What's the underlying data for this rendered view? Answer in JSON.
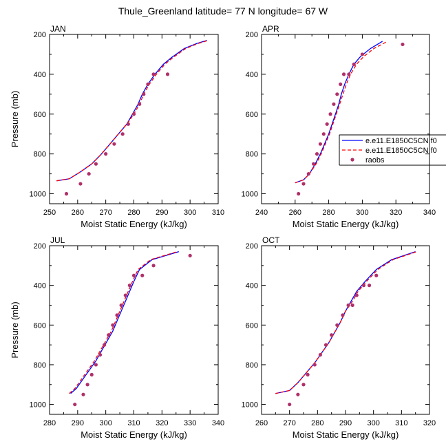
{
  "title": "Thule_Greenland  latitude= 77 N longitude= 67 W",
  "colors": {
    "model1": "#0000ff",
    "model2": "#ff0000",
    "raobs": "#b0306a",
    "axis": "#000000"
  },
  "legend": {
    "panel": "APR",
    "placement": "right",
    "entries": [
      {
        "label": "e.e11.E1850C5CN.f0",
        "style": "solid",
        "color": "#0000ff"
      },
      {
        "label": "e.e11.E1850C5CN.f0",
        "style": "dashed",
        "color": "#ff0000"
      },
      {
        "label": "raobs",
        "style": "marker",
        "color": "#b0306a"
      }
    ]
  },
  "chart_data": [
    {
      "type": "line",
      "panel": "JAN",
      "xlabel": "Moist Static Energy (kJ/kg)",
      "ylabel": "Pressure (mb)",
      "xlim": [
        250,
        310
      ],
      "ylim": [
        200,
        1050
      ],
      "y_inverted": true,
      "xticks": [
        250,
        260,
        270,
        280,
        290,
        300,
        310
      ],
      "yticks": [
        200,
        400,
        600,
        800,
        1000
      ],
      "series": [
        {
          "name": "e.e11.E1850C5CN.f0",
          "style": "solid",
          "color": "#0000ff",
          "x": [
            252.5,
            257,
            261,
            265,
            268.5,
            271.5,
            274.5,
            277.5,
            279.5,
            281.5,
            283,
            285,
            287.5,
            290.5,
            293.5,
            298,
            302.5,
            306
          ],
          "y": [
            935,
            925,
            890,
            850,
            800,
            750,
            700,
            650,
            600,
            550,
            500,
            450,
            400,
            350,
            315,
            270,
            245,
            230
          ]
        },
        {
          "name": "e.e11.E1850C5CN.f0",
          "style": "dashed",
          "color": "#ff0000",
          "x": [
            252.5,
            257,
            261,
            265,
            268.5,
            271.5,
            274.5,
            277.5,
            280,
            282,
            283.5,
            285.5,
            288,
            291,
            294,
            298.5,
            303,
            306.5
          ],
          "y": [
            935,
            925,
            890,
            850,
            800,
            750,
            700,
            650,
            600,
            550,
            500,
            450,
            400,
            350,
            315,
            270,
            245,
            230
          ]
        },
        {
          "name": "raobs",
          "style": "marker",
          "color": "#b0306a",
          "x": [
            256,
            261,
            264,
            266.5,
            270,
            273,
            276,
            278,
            280,
            282,
            283.5,
            285,
            287,
            292
          ],
          "y": [
            1000,
            950,
            900,
            850,
            800,
            750,
            700,
            650,
            600,
            550,
            500,
            450,
            400,
            400
          ]
        }
      ]
    },
    {
      "type": "line",
      "panel": "APR",
      "xlabel": "Moist Static Energy (kJ/kg)",
      "ylabel": "",
      "xlim": [
        240,
        340
      ],
      "ylim": [
        200,
        1050
      ],
      "y_inverted": true,
      "xticks": [
        240,
        260,
        280,
        300,
        320,
        340
      ],
      "yticks": [
        200,
        400,
        600,
        800,
        1000
      ],
      "series": [
        {
          "name": "e.e11.E1850C5CN.f0",
          "style": "solid",
          "color": "#0000ff",
          "x": [
            260,
            265,
            268.5,
            272,
            275,
            277.5,
            280,
            282,
            284,
            286,
            287.5,
            289.5,
            292,
            295,
            299,
            305,
            312
          ],
          "y": [
            945,
            930,
            900,
            850,
            800,
            750,
            700,
            650,
            600,
            550,
            500,
            450,
            400,
            350,
            310,
            270,
            235
          ]
        },
        {
          "name": "e.e11.E1850C5CN.f0",
          "style": "dashed",
          "color": "#ff0000",
          "x": [
            260,
            265,
            268.5,
            272.5,
            275.5,
            278,
            280.5,
            282.5,
            284.5,
            286.5,
            288.5,
            290.5,
            293,
            296.5,
            301,
            307,
            315
          ],
          "y": [
            945,
            930,
            900,
            850,
            800,
            750,
            700,
            650,
            600,
            550,
            500,
            450,
            400,
            350,
            310,
            270,
            235
          ]
        },
        {
          "name": "raobs",
          "style": "marker",
          "color": "#b0306a",
          "x": [
            262,
            265,
            268,
            271,
            273,
            275,
            277,
            279,
            281,
            283,
            285,
            287,
            289,
            292,
            295,
            300,
            324
          ],
          "y": [
            1000,
            950,
            900,
            850,
            800,
            750,
            700,
            650,
            600,
            550,
            500,
            450,
            400,
            400,
            350,
            300,
            250
          ]
        }
      ]
    },
    {
      "type": "line",
      "panel": "JUL",
      "xlabel": "Moist Static Energy (kJ/kg)",
      "ylabel": "Pressure (mb)",
      "xlim": [
        280,
        340
      ],
      "ylim": [
        200,
        1050
      ],
      "y_inverted": true,
      "xticks": [
        280,
        290,
        300,
        310,
        320,
        330,
        340
      ],
      "yticks": [
        200,
        400,
        600,
        800,
        1000
      ],
      "series": [
        {
          "name": "e.e11.E1850C5CN.f0",
          "style": "solid",
          "color": "#0000ff",
          "x": [
            287.5,
            289.5,
            291.5,
            294,
            296.5,
            298.5,
            300.5,
            302.5,
            304,
            305.5,
            307,
            308.5,
            310,
            312,
            316.5,
            326
          ],
          "y": [
            945,
            920,
            880,
            830,
            780,
            730,
            680,
            630,
            580,
            530,
            480,
            430,
            380,
            320,
            270,
            230
          ]
        },
        {
          "name": "e.e11.E1850C5CN.f0",
          "style": "dashed",
          "color": "#ff0000",
          "x": [
            287,
            289,
            291,
            293.5,
            296,
            298,
            300,
            302,
            303.5,
            305,
            306.5,
            308,
            309.5,
            311.5,
            316,
            325.5
          ],
          "y": [
            945,
            920,
            880,
            830,
            780,
            730,
            680,
            630,
            580,
            530,
            480,
            430,
            380,
            320,
            270,
            230
          ]
        },
        {
          "name": "raobs",
          "style": "marker",
          "color": "#b0306a",
          "x": [
            289,
            292,
            293.5,
            295,
            296.5,
            298,
            299.5,
            301,
            302.5,
            304,
            305.5,
            307,
            308.5,
            310,
            313,
            317,
            330
          ],
          "y": [
            1000,
            950,
            900,
            850,
            800,
            750,
            700,
            650,
            600,
            550,
            500,
            450,
            400,
            350,
            350,
            300,
            250
          ]
        }
      ]
    },
    {
      "type": "line",
      "panel": "OCT",
      "xlabel": "Moist Static Energy (kJ/kg)",
      "ylabel": "",
      "xlim": [
        260,
        320
      ],
      "ylim": [
        200,
        1050
      ],
      "y_inverted": true,
      "xticks": [
        260,
        270,
        280,
        290,
        300,
        310,
        320
      ],
      "yticks": [
        200,
        400,
        600,
        800,
        1000
      ],
      "series": [
        {
          "name": "e.e11.E1850C5CN.f0",
          "style": "solid",
          "color": "#0000ff",
          "x": [
            265,
            270,
            273,
            276,
            279,
            281.5,
            284,
            286,
            288,
            290,
            292,
            294,
            297,
            301,
            306.5,
            315
          ],
          "y": [
            945,
            930,
            890,
            840,
            790,
            740,
            690,
            640,
            590,
            530,
            480,
            430,
            380,
            320,
            270,
            230
          ]
        },
        {
          "name": "e.e11.E1850C5CN.f0",
          "style": "dashed",
          "color": "#ff0000",
          "x": [
            265,
            270,
            273,
            276,
            279,
            281.5,
            284,
            286,
            288,
            290,
            292.5,
            294.5,
            297.5,
            301.5,
            307,
            315.5
          ],
          "y": [
            945,
            930,
            890,
            840,
            790,
            740,
            690,
            640,
            590,
            530,
            480,
            430,
            380,
            320,
            270,
            230
          ]
        },
        {
          "name": "raobs",
          "style": "marker",
          "color": "#b0306a",
          "x": [
            270,
            273,
            275,
            276.5,
            279,
            281,
            283,
            285,
            287,
            289,
            291,
            292.5,
            294,
            296.5,
            298.5,
            301
          ],
          "y": [
            1000,
            950,
            900,
            850,
            800,
            750,
            700,
            650,
            600,
            550,
            500,
            500,
            450,
            400,
            400,
            350
          ]
        }
      ]
    }
  ]
}
